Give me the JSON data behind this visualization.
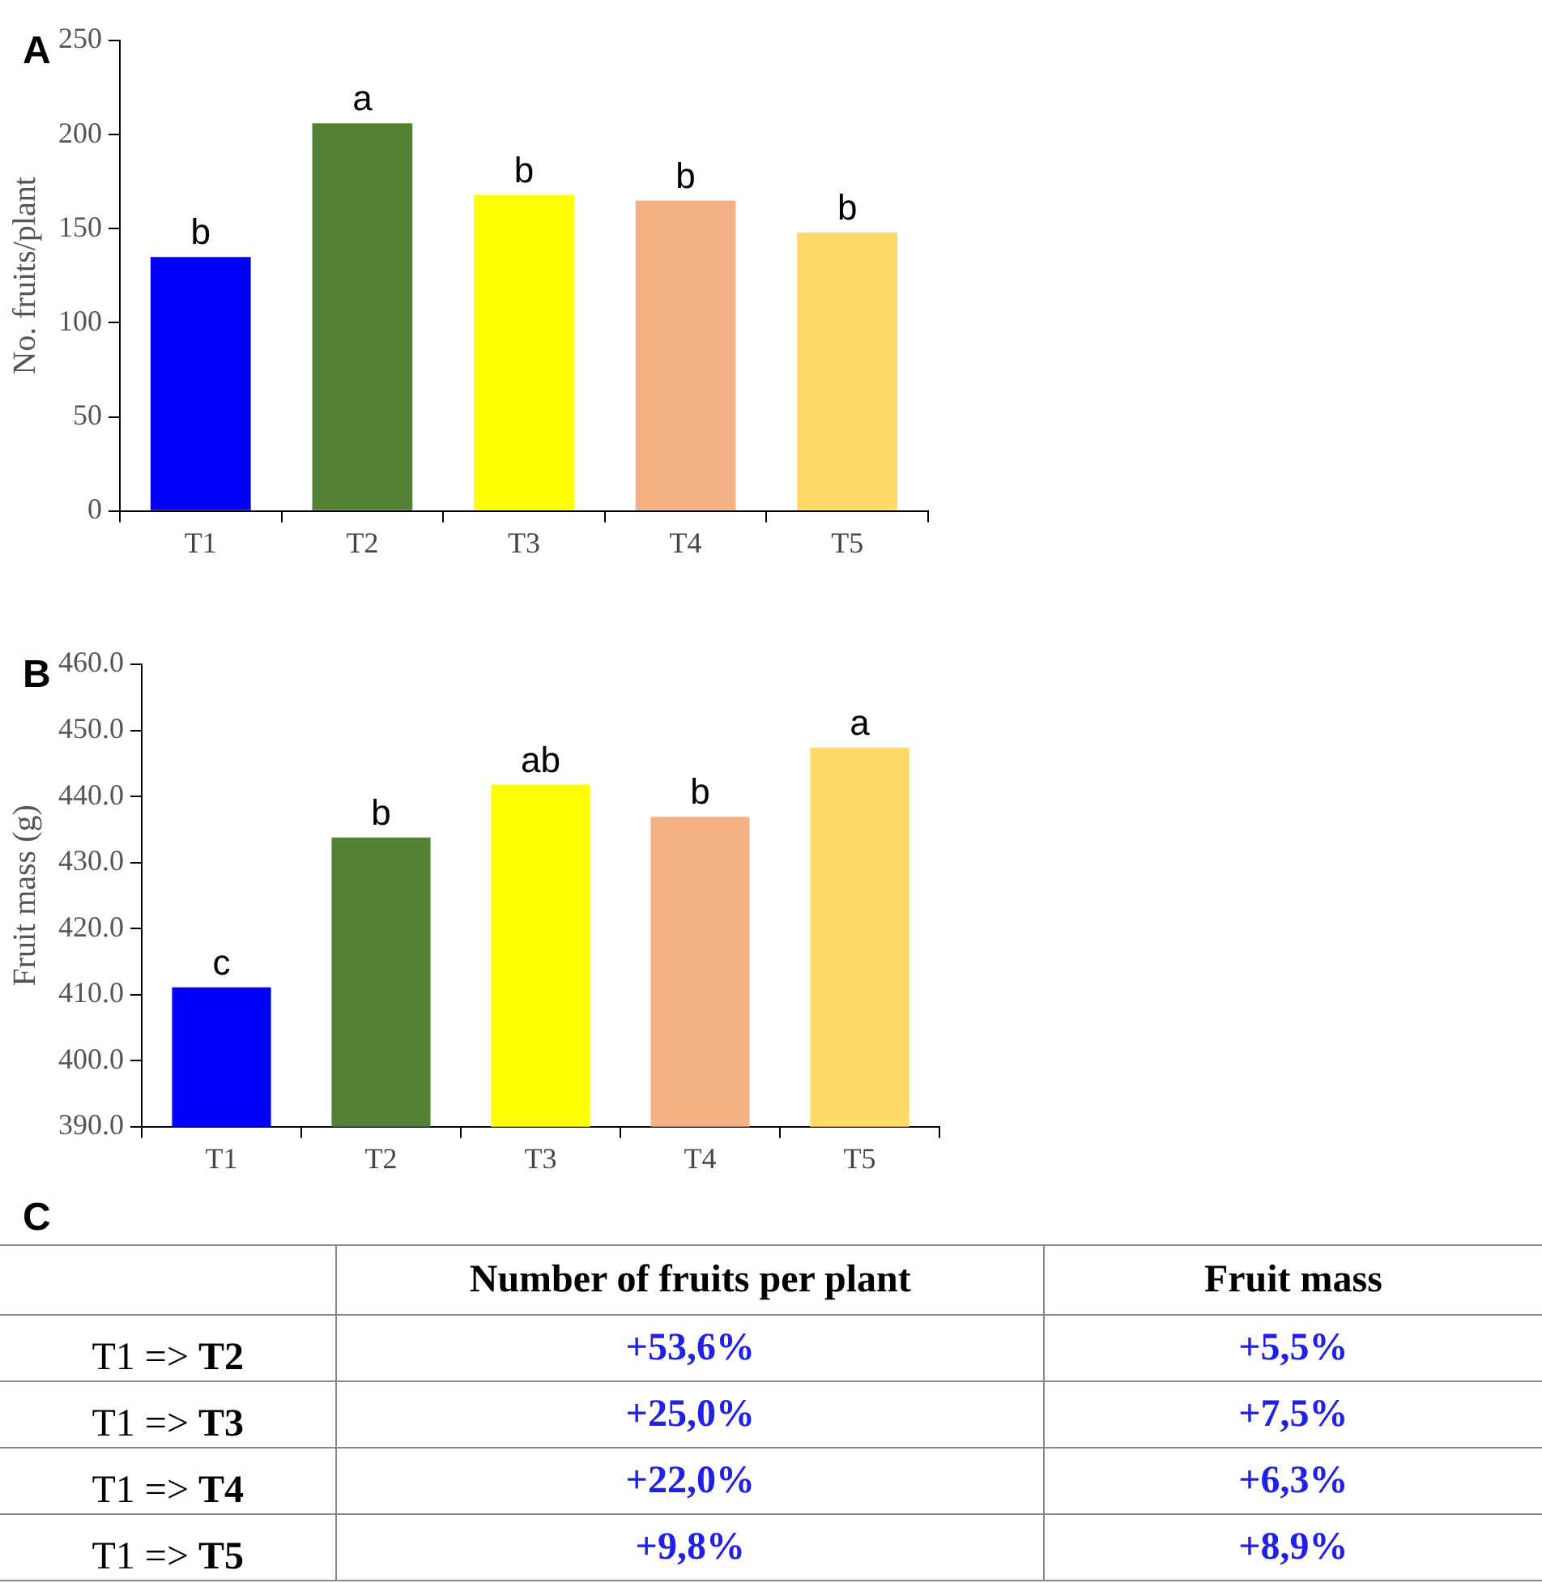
{
  "chart_data": [
    {
      "type": "bar",
      "title": "A",
      "ylabel": "No. fruits/plant",
      "categories": [
        "T1",
        "T2",
        "T3",
        "T4",
        "T5"
      ],
      "values": [
        135,
        206,
        168,
        165,
        148
      ],
      "colors": [
        "#0000ff",
        "#548235",
        "#ffff00",
        "#f4b183",
        "#ffd966"
      ],
      "value_labels": [
        "b",
        "a",
        "b",
        "b",
        "b"
      ],
      "ylim": [
        0,
        250
      ],
      "yticks": [
        0,
        50,
        100,
        150,
        200,
        250
      ],
      "grid": false,
      "legend": false
    },
    {
      "type": "bar",
      "title": "B",
      "ylabel": "Fruit mass (g)",
      "categories": [
        "T1",
        "T2",
        "T3",
        "T4",
        "T5"
      ],
      "values": [
        411.1,
        433.8,
        441.8,
        436.9,
        447.4
      ],
      "colors": [
        "#0000ff",
        "#548235",
        "#ffff00",
        "#f4b183",
        "#ffd966"
      ],
      "value_labels": [
        "c",
        "b",
        "ab",
        "b",
        "a"
      ],
      "ylim": [
        390,
        460
      ],
      "yticks": [
        {
          "value": 390,
          "label": "390.0"
        },
        {
          "value": 400,
          "label": "400.0"
        },
        {
          "value": 410,
          "label": "410.0"
        },
        {
          "value": 420,
          "label": "420.0"
        },
        {
          "value": 430,
          "label": "430.0"
        },
        {
          "value": 440,
          "label": "440.0"
        },
        {
          "value": 450,
          "label": "450.0"
        },
        {
          "value": 460,
          "label": "460.0"
        }
      ],
      "grid": false,
      "legend": false
    },
    {
      "type": "other",
      "title": "C",
      "categories": [
        null,
        "Number of fruits per plant",
        "Fruit mass"
      ],
      "y_categories": [
        "T1 => T2",
        "T1 => T3",
        "T1 => T4",
        "T1 => T5"
      ],
      "cell_labels": [
        [
          "+53,6%",
          "+5,5%"
        ],
        [
          "+25,0%",
          "+7,5%"
        ],
        [
          "+22,0%",
          "+6,3%"
        ],
        [
          "+9,8%",
          "+8,9%"
        ]
      ],
      "color": "#2020e8"
    }
  ]
}
